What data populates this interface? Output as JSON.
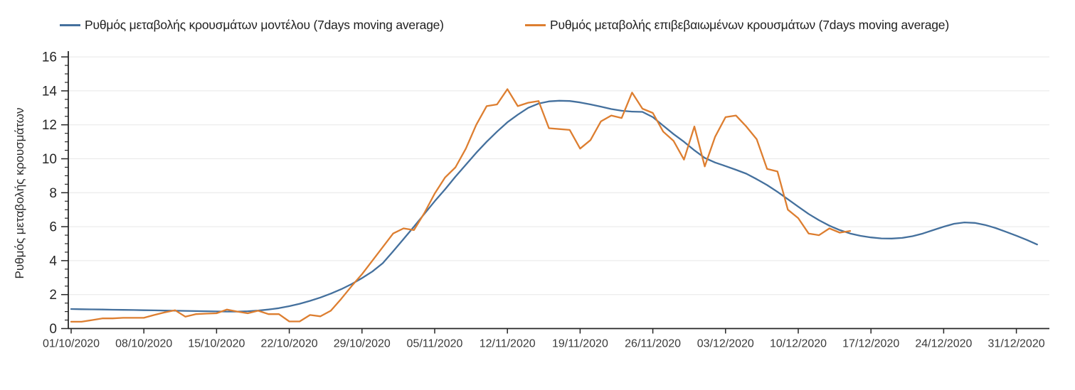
{
  "chart_data": {
    "type": "line",
    "title": "",
    "xlabel": "",
    "ylabel": "Ρυθμός μεταβολής κρουσμάτων",
    "ylim": [
      0,
      16
    ],
    "y_ticks": [
      0,
      2,
      4,
      6,
      8,
      10,
      12,
      14,
      16
    ],
    "y_minor_tick_step": 0.5,
    "grid": "horizontal-major-only",
    "legend_position": "top-left",
    "x_unit": "days since 01/10/2020 (daily points)",
    "x_tick_positions": [
      0,
      7,
      14,
      21,
      28,
      35,
      42,
      49,
      56,
      63,
      70,
      77,
      84,
      91
    ],
    "x_tick_labels": [
      "01/10/2020",
      "08/10/2020",
      "15/10/2020",
      "22/10/2020",
      "29/10/2020",
      "05/11/2020",
      "12/11/2020",
      "19/11/2020",
      "26/11/2020",
      "03/12/2020",
      "10/12/2020",
      "17/12/2020",
      "24/12/2020",
      "31/12/2020"
    ],
    "colors": {
      "model_line": "#44709d",
      "confirmed_line": "#dd7e30",
      "gridline": "#e7e7e7",
      "axis": "#262626",
      "tick_label": "#3a3a3a"
    },
    "series": [
      {
        "name": "Ρυθμός μεταβολής κρουσμάτων μοντέλου (7days moving average)",
        "color": "#44709d",
        "x_start_day": 0,
        "values": [
          1.15,
          1.14,
          1.13,
          1.12,
          1.11,
          1.1,
          1.09,
          1.08,
          1.07,
          1.06,
          1.05,
          1.04,
          1.03,
          1.02,
          1.01,
          1.0,
          1.0,
          1.02,
          1.06,
          1.12,
          1.2,
          1.32,
          1.46,
          1.63,
          1.83,
          2.06,
          2.32,
          2.62,
          2.97,
          3.36,
          3.85,
          4.55,
          5.27,
          6.0,
          6.75,
          7.5,
          8.2,
          8.95,
          9.65,
          10.35,
          11.0,
          11.6,
          12.15,
          12.6,
          13.0,
          13.25,
          13.38,
          13.42,
          13.4,
          13.32,
          13.2,
          13.07,
          12.93,
          12.83,
          12.78,
          12.76,
          12.45,
          11.95,
          11.45,
          11.0,
          10.5,
          10.05,
          9.78,
          9.57,
          9.35,
          9.12,
          8.8,
          8.45,
          8.05,
          7.62,
          7.18,
          6.75,
          6.38,
          6.06,
          5.8,
          5.6,
          5.46,
          5.37,
          5.31,
          5.3,
          5.34,
          5.44,
          5.6,
          5.8,
          6.0,
          6.17,
          6.25,
          6.22,
          6.1,
          5.92,
          5.7,
          5.47,
          5.22,
          4.95
        ]
      },
      {
        "name": "Ρυθμός μεταβολής επιβεβαιωμένων κρουσμάτων (7days moving average)",
        "color": "#dd7e30",
        "x_start_day": 0,
        "values": [
          0.4,
          0.4,
          0.5,
          0.6,
          0.6,
          0.63,
          0.63,
          0.63,
          0.8,
          0.95,
          1.08,
          0.7,
          0.85,
          0.88,
          0.9,
          1.12,
          1.0,
          0.9,
          1.05,
          0.85,
          0.85,
          0.42,
          0.42,
          0.8,
          0.72,
          1.05,
          1.75,
          2.5,
          3.2,
          4.0,
          4.8,
          5.6,
          5.9,
          5.8,
          6.8,
          7.95,
          8.9,
          9.5,
          10.6,
          12.0,
          13.1,
          13.2,
          14.1,
          13.1,
          13.3,
          13.4,
          11.8,
          11.75,
          11.7,
          10.6,
          11.1,
          12.2,
          12.55,
          12.4,
          13.9,
          12.95,
          12.7,
          11.6,
          11.05,
          9.95,
          11.9,
          9.55,
          11.3,
          12.45,
          12.55,
          11.9,
          11.15,
          9.4,
          9.25,
          7.0,
          6.5,
          5.6,
          5.5,
          5.9,
          5.65,
          5.75
        ]
      }
    ]
  }
}
